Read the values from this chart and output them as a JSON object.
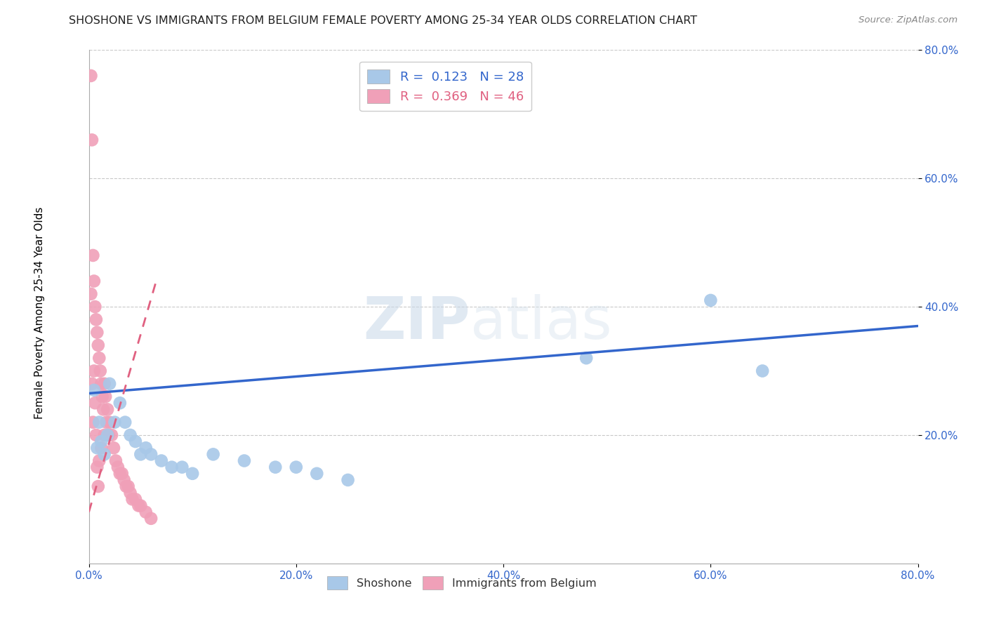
{
  "title": "SHOSHONE VS IMMIGRANTS FROM BELGIUM FEMALE POVERTY AMONG 25-34 YEAR OLDS CORRELATION CHART",
  "source": "Source: ZipAtlas.com",
  "ylabel": "Female Poverty Among 25-34 Year Olds",
  "xlim": [
    0.0,
    0.8
  ],
  "ylim": [
    0.0,
    0.8
  ],
  "xticks": [
    0.0,
    0.2,
    0.4,
    0.6,
    0.8
  ],
  "yticks": [
    0.2,
    0.4,
    0.6,
    0.8
  ],
  "xticklabels": [
    "0.0%",
    "20.0%",
    "40.0%",
    "60.0%",
    "80.0%"
  ],
  "yticklabels": [
    "20.0%",
    "40.0%",
    "60.0%",
    "80.0%"
  ],
  "shoshone_color": "#a8c8e8",
  "belgium_color": "#f0a0b8",
  "shoshone_R": 0.123,
  "shoshone_N": 28,
  "belgium_R": 0.369,
  "belgium_N": 46,
  "shoshone_line_color": "#3366cc",
  "belgium_line_color": "#e06080",
  "watermark_zip": "ZIP",
  "watermark_atlas": "atlas",
  "shoshone_x": [
    0.005,
    0.008,
    0.01,
    0.012,
    0.015,
    0.018,
    0.02,
    0.025,
    0.03,
    0.035,
    0.04,
    0.045,
    0.05,
    0.055,
    0.06,
    0.07,
    0.08,
    0.09,
    0.1,
    0.12,
    0.15,
    0.18,
    0.2,
    0.22,
    0.25,
    0.6,
    0.65,
    0.48
  ],
  "shoshone_y": [
    0.27,
    0.18,
    0.22,
    0.19,
    0.17,
    0.2,
    0.28,
    0.22,
    0.25,
    0.22,
    0.2,
    0.19,
    0.17,
    0.18,
    0.17,
    0.16,
    0.15,
    0.15,
    0.14,
    0.17,
    0.16,
    0.15,
    0.15,
    0.14,
    0.13,
    0.41,
    0.3,
    0.32
  ],
  "belgium_x": [
    0.002,
    0.002,
    0.003,
    0.003,
    0.004,
    0.004,
    0.005,
    0.005,
    0.006,
    0.006,
    0.007,
    0.007,
    0.008,
    0.008,
    0.009,
    0.009,
    0.01,
    0.01,
    0.011,
    0.012,
    0.012,
    0.013,
    0.014,
    0.015,
    0.015,
    0.016,
    0.017,
    0.018,
    0.019,
    0.02,
    0.022,
    0.024,
    0.026,
    0.028,
    0.03,
    0.032,
    0.034,
    0.036,
    0.038,
    0.04,
    0.042,
    0.045,
    0.048,
    0.05,
    0.055,
    0.06
  ],
  "belgium_y": [
    0.76,
    0.42,
    0.66,
    0.28,
    0.48,
    0.22,
    0.44,
    0.3,
    0.4,
    0.25,
    0.38,
    0.2,
    0.36,
    0.15,
    0.34,
    0.12,
    0.32,
    0.16,
    0.3,
    0.28,
    0.18,
    0.26,
    0.24,
    0.28,
    0.2,
    0.26,
    0.22,
    0.24,
    0.2,
    0.22,
    0.2,
    0.18,
    0.16,
    0.15,
    0.14,
    0.14,
    0.13,
    0.12,
    0.12,
    0.11,
    0.1,
    0.1,
    0.09,
    0.09,
    0.08,
    0.07
  ],
  "shoshone_line_x": [
    0.0,
    0.8
  ],
  "shoshone_line_y": [
    0.265,
    0.37
  ],
  "belgium_line_x": [
    0.0,
    0.065
  ],
  "belgium_line_y": [
    0.08,
    0.44
  ]
}
